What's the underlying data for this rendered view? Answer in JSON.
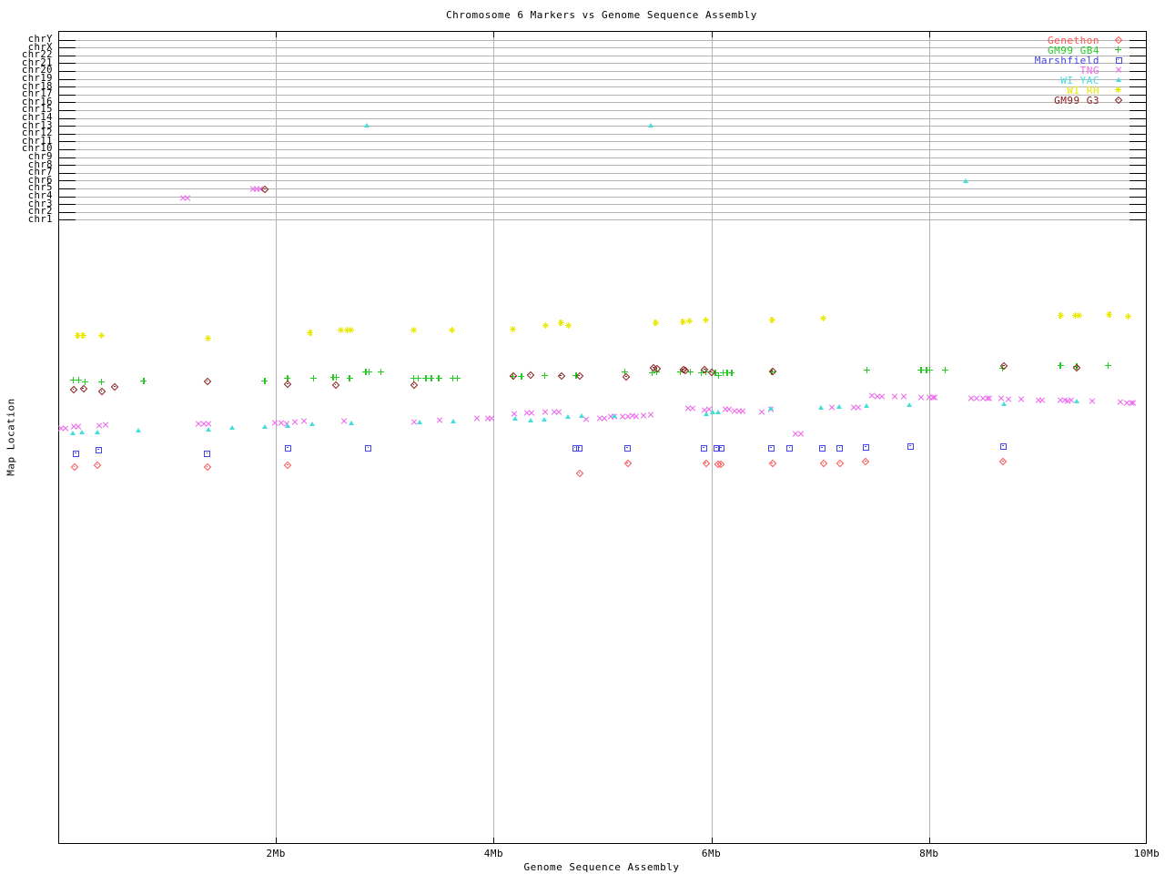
{
  "title": "Chromosome 6 Markers vs Genome Sequence Assembly",
  "axes": {
    "x_label": "Genome Sequence Assembly",
    "y_label": "Map Location",
    "x_range_mb": [
      0,
      10
    ],
    "x_ticks": [
      {
        "label": "2Mb",
        "mb": 2,
        "gridline": true
      },
      {
        "label": "4Mb",
        "mb": 4,
        "gridline": true
      },
      {
        "label": "6Mb",
        "mb": 6,
        "gridline": true
      },
      {
        "label": "8Mb",
        "mb": 8,
        "gridline": true
      },
      {
        "label": "10Mb",
        "mb": 10,
        "gridline": false
      }
    ]
  },
  "chromosome_rows": [
    "chrY",
    "chrX",
    "chr22",
    "chr21",
    "chr20",
    "chr19",
    "chr18",
    "chr17",
    "chr16",
    "chr15",
    "chr14",
    "chr13",
    "chr12",
    "chr11",
    "chr10",
    "chr9",
    "chr8",
    "chr7",
    "chr6",
    "chr5",
    "chr4",
    "chr3",
    "chr2",
    "chr1"
  ],
  "colors": {
    "grid": "#b4b4b4",
    "axis": "#000000",
    "background": "#ffffff"
  },
  "chart_data": {
    "type": "scatter",
    "title": "Chromosome 6 Markers vs Genome Sequence Assembly",
    "xlabel": "Genome Sequence Assembly",
    "ylabel": "Map Location",
    "x_unit": "Mb",
    "xlim": [
      0,
      10
    ],
    "grid": "x gridlines at 2,4,6,8 Mb; horizontal gray line per chromosome row at top",
    "legend_position": "top-right",
    "y_note": "y = vertical pixel position from image top (map-location scale unlabeled in source); rows chrY..chr1 occupy y 43-242",
    "series": [
      {
        "name": "Genethon",
        "marker": "diamond",
        "color": "#ff5050",
        "points": [
          [
            0.15,
            513
          ],
          [
            0.36,
            511
          ],
          [
            1.37,
            513
          ],
          [
            2.11,
            511
          ],
          [
            4.79,
            520
          ],
          [
            5.23,
            509
          ],
          [
            5.95,
            509
          ],
          [
            6.06,
            510
          ],
          [
            6.09,
            510
          ],
          [
            6.56,
            509
          ],
          [
            7.03,
            509
          ],
          [
            7.18,
            509
          ],
          [
            7.42,
            507
          ],
          [
            8.68,
            507
          ]
        ]
      },
      {
        "name": "GM99 GB4",
        "marker": "plus",
        "color": "#22cc22",
        "points": [
          [
            0.14,
            418
          ],
          [
            0.19,
            418
          ],
          [
            0.25,
            420
          ],
          [
            0.4,
            420
          ],
          [
            0.79,
            419
          ],
          [
            1.9,
            419
          ],
          [
            2.11,
            416
          ],
          [
            2.35,
            416
          ],
          [
            2.53,
            415
          ],
          [
            2.56,
            415
          ],
          [
            2.68,
            416
          ],
          [
            2.83,
            409
          ],
          [
            2.86,
            409
          ],
          [
            2.97,
            409
          ],
          [
            3.27,
            416
          ],
          [
            3.31,
            416
          ],
          [
            3.38,
            416
          ],
          [
            3.43,
            416
          ],
          [
            3.5,
            416
          ],
          [
            3.63,
            416
          ],
          [
            3.67,
            416
          ],
          [
            4.18,
            414
          ],
          [
            4.26,
            414
          ],
          [
            4.47,
            413
          ],
          [
            4.76,
            413
          ],
          [
            5.21,
            409
          ],
          [
            5.46,
            410
          ],
          [
            5.5,
            409
          ],
          [
            5.72,
            409
          ],
          [
            5.81,
            409
          ],
          [
            5.91,
            410
          ],
          [
            5.95,
            409
          ],
          [
            6.04,
            410
          ],
          [
            6.07,
            413
          ],
          [
            6.11,
            410
          ],
          [
            6.15,
            410
          ],
          [
            6.19,
            410
          ],
          [
            6.56,
            409
          ],
          [
            7.43,
            407
          ],
          [
            7.93,
            407
          ],
          [
            7.98,
            407
          ],
          [
            8.01,
            407
          ],
          [
            8.15,
            407
          ],
          [
            8.68,
            405
          ],
          [
            9.21,
            402
          ],
          [
            9.36,
            403
          ],
          [
            9.65,
            402
          ]
        ]
      },
      {
        "name": "Marshfield",
        "marker": "square",
        "color": "#4444ee",
        "points": [
          [
            0.16,
            498
          ],
          [
            0.37,
            494
          ],
          [
            1.37,
            498
          ],
          [
            2.11,
            492
          ],
          [
            2.85,
            492
          ],
          [
            4.75,
            492
          ],
          [
            4.79,
            492
          ],
          [
            5.23,
            492
          ],
          [
            5.93,
            492
          ],
          [
            6.05,
            492
          ],
          [
            6.09,
            492
          ],
          [
            6.55,
            492
          ],
          [
            6.72,
            492
          ],
          [
            7.02,
            492
          ],
          [
            7.18,
            492
          ],
          [
            7.42,
            491
          ],
          [
            7.83,
            490
          ],
          [
            8.68,
            490
          ]
        ]
      },
      {
        "name": "TNG",
        "marker": "x",
        "color": "#ee66ee",
        "points": [
          [
            1.15,
            218
          ],
          [
            1.19,
            218
          ],
          [
            1.79,
            208
          ],
          [
            1.83,
            208
          ],
          [
            1.86,
            208
          ],
          [
            0.03,
            471
          ],
          [
            0.07,
            471
          ],
          [
            0.15,
            469
          ],
          [
            0.19,
            469
          ],
          [
            0.38,
            468
          ],
          [
            0.44,
            467
          ],
          [
            1.29,
            466
          ],
          [
            1.34,
            466
          ],
          [
            1.38,
            466
          ],
          [
            1.99,
            465
          ],
          [
            2.05,
            465
          ],
          [
            2.1,
            466
          ],
          [
            2.18,
            464
          ],
          [
            2.26,
            463
          ],
          [
            2.63,
            463
          ],
          [
            3.27,
            464
          ],
          [
            3.51,
            462
          ],
          [
            3.85,
            460
          ],
          [
            3.95,
            460
          ],
          [
            3.98,
            460
          ],
          [
            4.19,
            455
          ],
          [
            4.31,
            454
          ],
          [
            4.35,
            454
          ],
          [
            4.48,
            453
          ],
          [
            4.56,
            453
          ],
          [
            4.6,
            453
          ],
          [
            4.85,
            461
          ],
          [
            4.98,
            460
          ],
          [
            5.02,
            460
          ],
          [
            5.08,
            458
          ],
          [
            5.11,
            458
          ],
          [
            5.19,
            458
          ],
          [
            5.24,
            458
          ],
          [
            5.28,
            457
          ],
          [
            5.31,
            458
          ],
          [
            5.38,
            457
          ],
          [
            5.45,
            456
          ],
          [
            5.79,
            449
          ],
          [
            5.83,
            449
          ],
          [
            5.94,
            451
          ],
          [
            5.98,
            450
          ],
          [
            6.13,
            450
          ],
          [
            6.17,
            450
          ],
          [
            6.22,
            452
          ],
          [
            6.26,
            452
          ],
          [
            6.29,
            452
          ],
          [
            6.47,
            453
          ],
          [
            6.55,
            450
          ],
          [
            6.78,
            477
          ],
          [
            6.83,
            477
          ],
          [
            7.11,
            448
          ],
          [
            7.31,
            448
          ],
          [
            7.35,
            448
          ],
          [
            7.48,
            435
          ],
          [
            7.53,
            436
          ],
          [
            7.57,
            436
          ],
          [
            7.69,
            436
          ],
          [
            7.77,
            436
          ],
          [
            7.93,
            437
          ],
          [
            8.01,
            437
          ],
          [
            8.04,
            437
          ],
          [
            8.06,
            437
          ],
          [
            8.39,
            438
          ],
          [
            8.44,
            438
          ],
          [
            8.5,
            438
          ],
          [
            8.54,
            438
          ],
          [
            8.56,
            438
          ],
          [
            8.67,
            438
          ],
          [
            8.73,
            439
          ],
          [
            8.85,
            439
          ],
          [
            9.01,
            440
          ],
          [
            9.04,
            440
          ],
          [
            9.21,
            440
          ],
          [
            9.25,
            440
          ],
          [
            9.28,
            441
          ],
          [
            9.31,
            440
          ],
          [
            9.5,
            441
          ],
          [
            9.76,
            442
          ],
          [
            9.82,
            443
          ],
          [
            9.86,
            443
          ],
          [
            9.88,
            443
          ]
        ]
      },
      {
        "name": "WI YAC",
        "marker": "triangle",
        "color": "#44dddd",
        "points": [
          [
            2.84,
            138
          ],
          [
            5.45,
            138
          ],
          [
            8.34,
            199
          ],
          [
            0.14,
            476
          ],
          [
            0.22,
            475
          ],
          [
            0.36,
            475
          ],
          [
            0.74,
            473
          ],
          [
            1.38,
            472
          ],
          [
            1.6,
            470
          ],
          [
            1.9,
            469
          ],
          [
            2.11,
            468
          ],
          [
            2.34,
            466
          ],
          [
            2.7,
            465
          ],
          [
            3.32,
            464
          ],
          [
            3.63,
            463
          ],
          [
            4.2,
            460
          ],
          [
            4.34,
            462
          ],
          [
            4.47,
            461
          ],
          [
            4.69,
            458
          ],
          [
            4.81,
            457
          ],
          [
            5.11,
            457
          ],
          [
            5.96,
            455
          ],
          [
            6.02,
            453
          ],
          [
            6.07,
            453
          ],
          [
            6.55,
            449
          ],
          [
            7.01,
            448
          ],
          [
            7.18,
            447
          ],
          [
            7.43,
            446
          ],
          [
            7.82,
            445
          ],
          [
            8.69,
            444
          ],
          [
            9.36,
            441
          ]
        ]
      },
      {
        "name": "WI RH",
        "marker": "star",
        "color": "#e8e800",
        "points": [
          [
            0.18,
            369
          ],
          [
            0.23,
            369
          ],
          [
            0.4,
            369
          ],
          [
            1.38,
            372
          ],
          [
            2.32,
            366
          ],
          [
            2.6,
            363
          ],
          [
            2.66,
            363
          ],
          [
            2.69,
            363
          ],
          [
            3.27,
            363
          ],
          [
            3.62,
            363
          ],
          [
            4.18,
            362
          ],
          [
            4.48,
            358
          ],
          [
            4.62,
            355
          ],
          [
            4.69,
            358
          ],
          [
            5.49,
            355
          ],
          [
            5.74,
            354
          ],
          [
            5.8,
            353
          ],
          [
            5.95,
            352
          ],
          [
            6.56,
            352
          ],
          [
            7.03,
            350
          ],
          [
            9.21,
            347
          ],
          [
            9.35,
            347
          ],
          [
            9.38,
            347
          ],
          [
            9.66,
            346
          ],
          [
            9.83,
            348
          ]
        ]
      },
      {
        "name": "GM99 G3",
        "marker": "diamond",
        "color": "#8b1a1a",
        "points": [
          [
            1.9,
            208
          ],
          [
            0.14,
            428
          ],
          [
            0.23,
            427
          ],
          [
            0.4,
            430
          ],
          [
            0.52,
            425
          ],
          [
            1.37,
            419
          ],
          [
            2.11,
            422
          ],
          [
            2.55,
            423
          ],
          [
            3.27,
            423
          ],
          [
            4.18,
            413
          ],
          [
            4.34,
            412
          ],
          [
            4.62,
            413
          ],
          [
            4.79,
            413
          ],
          [
            5.22,
            414
          ],
          [
            5.47,
            404
          ],
          [
            5.5,
            405
          ],
          [
            5.74,
            406
          ],
          [
            5.76,
            407
          ],
          [
            5.94,
            406
          ],
          [
            6.0,
            409
          ],
          [
            6.56,
            408
          ],
          [
            8.69,
            402
          ],
          [
            9.36,
            404
          ]
        ]
      }
    ]
  }
}
